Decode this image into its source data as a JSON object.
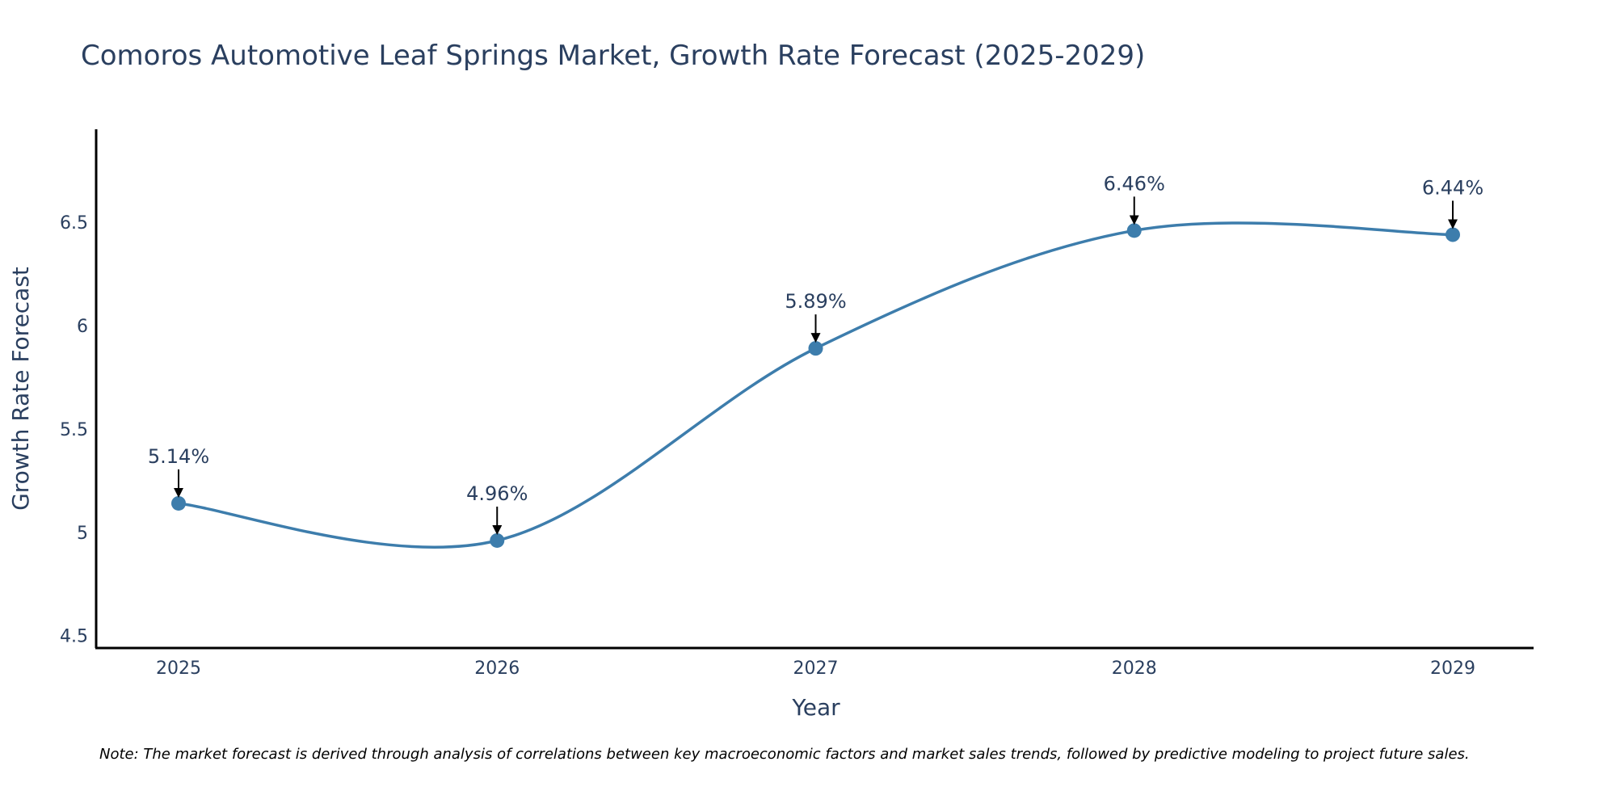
{
  "chart_data": {
    "type": "line",
    "title": "Comoros Automotive Leaf Springs Market, Growth Rate Forecast (2025-2029)",
    "xlabel": "Year",
    "ylabel": "Growth Rate Forecast",
    "categories": [
      "2025",
      "2026",
      "2027",
      "2028",
      "2029"
    ],
    "series": [
      {
        "name": "Growth Rate Forecast",
        "values": [
          5.14,
          4.96,
          5.89,
          6.46,
          6.44
        ],
        "labels": [
          "5.14%",
          "4.96%",
          "5.89%",
          "6.46%",
          "6.44%"
        ]
      }
    ],
    "yticks": [
      4.5,
      5,
      5.5,
      6,
      6.5
    ],
    "ytick_labels": [
      "4.5",
      "5",
      "5.5",
      "6",
      "6.5"
    ],
    "ylim": [
      4.44,
      6.95
    ],
    "grid": false,
    "line_shape": "spline",
    "colors": {
      "line": "#3d7dac",
      "marker": "#3d7dac",
      "axis": "#000000",
      "text": "#2a3f5f",
      "arrow": "#000000"
    },
    "note": "Note: The market forecast is derived through analysis of correlations between key macroeconomic factors and market sales trends, followed by predictive modeling to project future sales."
  }
}
